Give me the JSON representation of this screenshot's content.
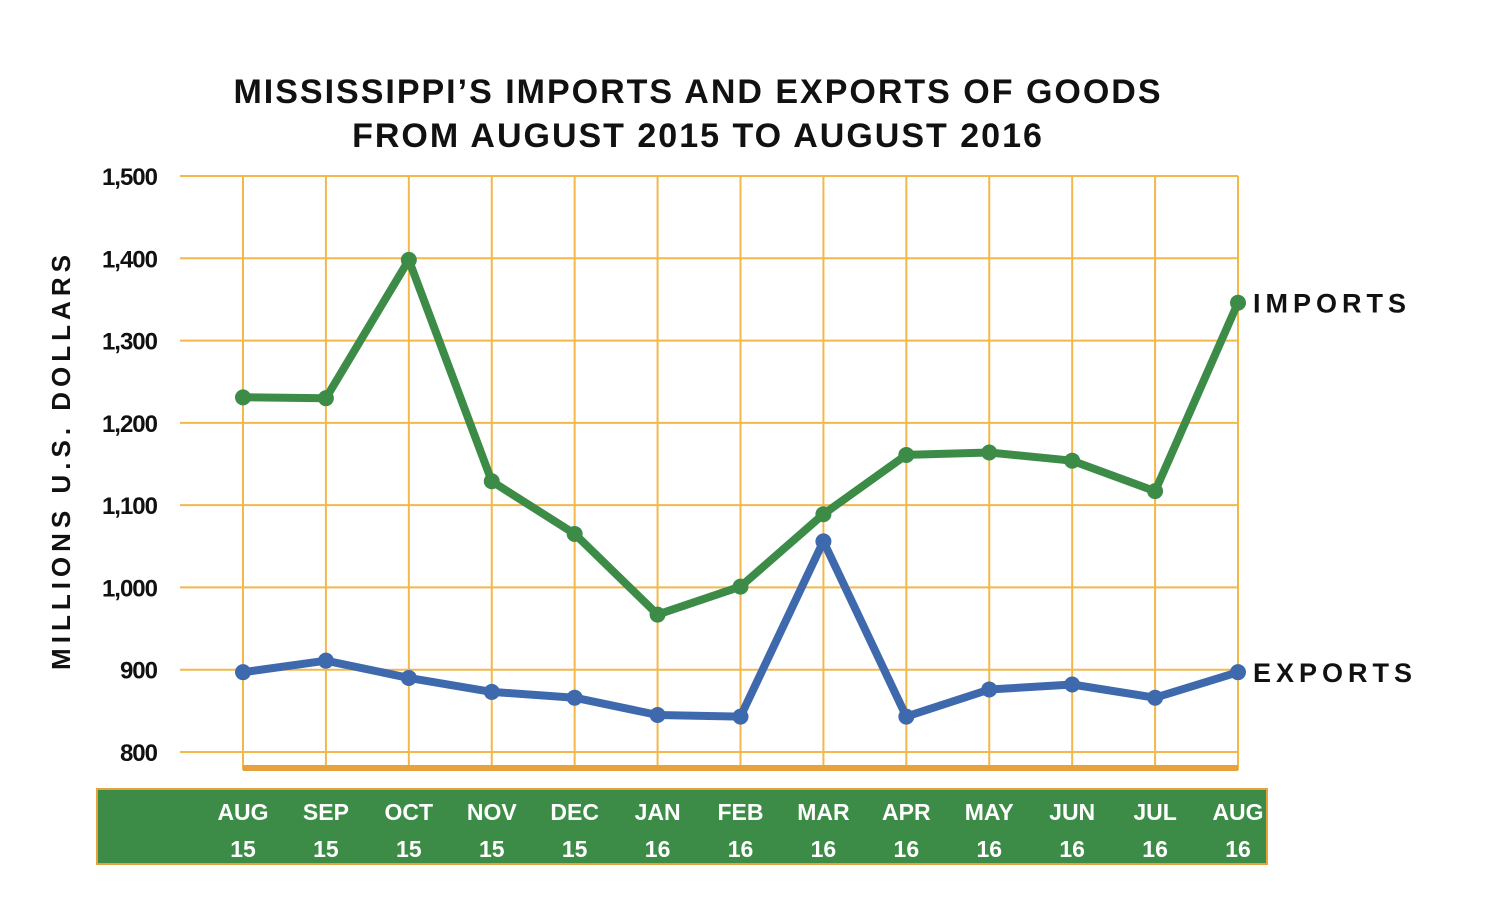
{
  "chart_data": {
    "type": "line",
    "title_lines": [
      "MISSISSIPPI’S IMPORTS AND EXPORTS OF GOODS",
      "FROM AUGUST 2015 TO AUGUST 2016"
    ],
    "ylabel": "MILLIONS U.S. DOLLARS",
    "xlabel": "",
    "ylim": [
      800,
      1500
    ],
    "yticks": [
      800,
      900,
      1000,
      1100,
      1200,
      1300,
      1400,
      1500
    ],
    "ytick_labels": [
      "800",
      "900",
      "1,000",
      "1,100",
      "1,200",
      "1,300",
      "1,400",
      "1,500"
    ],
    "categories": [
      [
        "AUG",
        "15"
      ],
      [
        "SEP",
        "15"
      ],
      [
        "OCT",
        "15"
      ],
      [
        "NOV",
        "15"
      ],
      [
        "DEC",
        "15"
      ],
      [
        "JAN",
        "16"
      ],
      [
        "FEB",
        "16"
      ],
      [
        "MAR",
        "16"
      ],
      [
        "APR",
        "16"
      ],
      [
        "MAY",
        "16"
      ],
      [
        "JUN",
        "16"
      ],
      [
        "JUL",
        "16"
      ],
      [
        "AUG",
        "16"
      ]
    ],
    "grid": true,
    "series": [
      {
        "name": "IMPORTS",
        "color": "#3c8c48",
        "values": [
          1231,
          1230,
          1398,
          1129,
          1065,
          967,
          1001,
          1089,
          1161,
          1164,
          1154,
          1117,
          1346
        ]
      },
      {
        "name": "EXPORTS",
        "color": "#3f69ad",
        "values": [
          897,
          911,
          890,
          873,
          866,
          845,
          843,
          1056,
          843,
          876,
          882,
          866,
          897
        ]
      }
    ],
    "colors": {
      "grid": "#f2b84b",
      "axis_band": "#e8a23d",
      "xaxis_band": "#3c8c48",
      "xaxis_band_border": "#e8a23d"
    }
  }
}
